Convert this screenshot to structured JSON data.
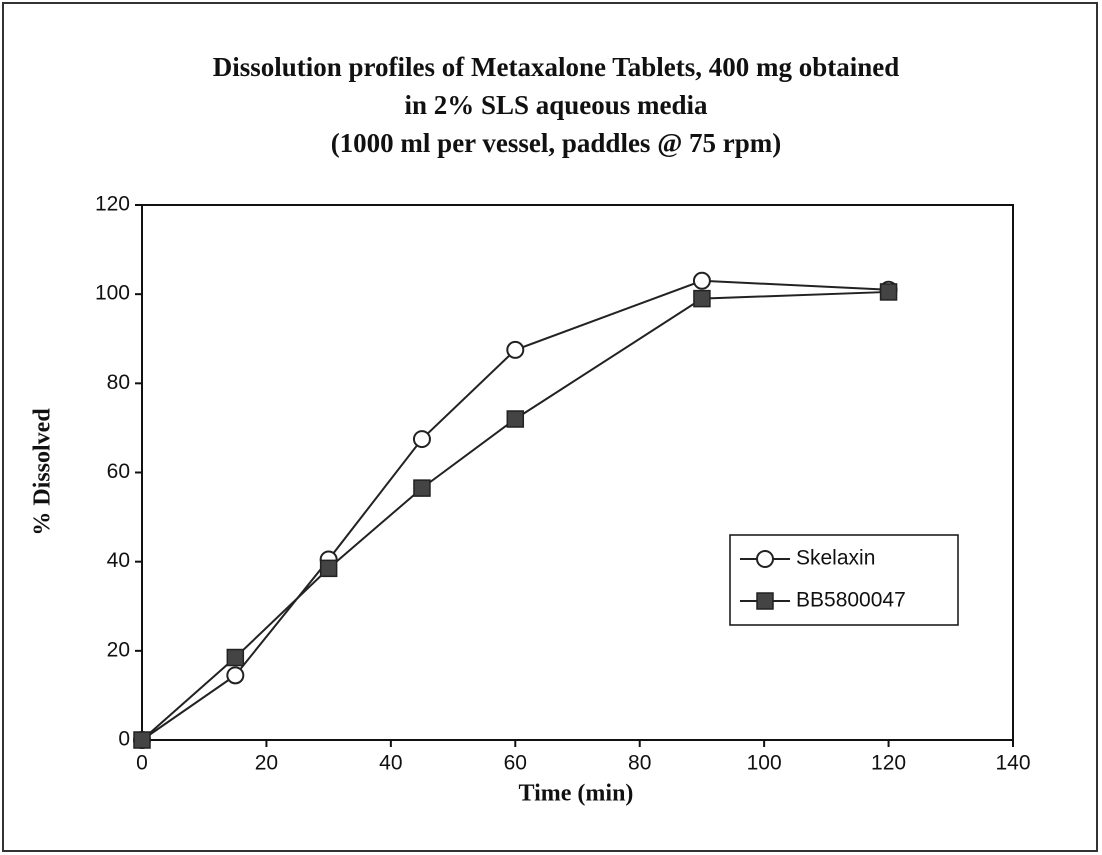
{
  "chart_data": {
    "type": "line",
    "title": [
      "Dissolution profiles of Metaxalone Tablets, 400 mg obtained",
      "in 2% SLS aqueous media",
      "(1000 ml per vessel, paddles @ 75 rpm)"
    ],
    "x_label": "Time (min)",
    "y_label": "% Dissolved",
    "x": [
      0,
      15,
      30,
      45,
      60,
      90,
      120
    ],
    "series": [
      {
        "name": "Skelaxin",
        "color": "#222222",
        "marker": "circle",
        "values": [
          0,
          14.5,
          40.5,
          67.5,
          87.5,
          103,
          101
        ]
      },
      {
        "name": "BB5800047",
        "color": "#222222",
        "marker": "square",
        "values": [
          0,
          18.5,
          38.5,
          56.5,
          72,
          99,
          100.5
        ]
      }
    ],
    "xlim": [
      0,
      140
    ],
    "xticks": [
      0,
      20,
      40,
      60,
      80,
      100,
      120,
      140
    ],
    "ylim": [
      0,
      120
    ],
    "yticks": [
      0,
      20,
      40,
      60,
      80,
      100,
      120
    ],
    "grid": false,
    "legend": "lower right"
  }
}
